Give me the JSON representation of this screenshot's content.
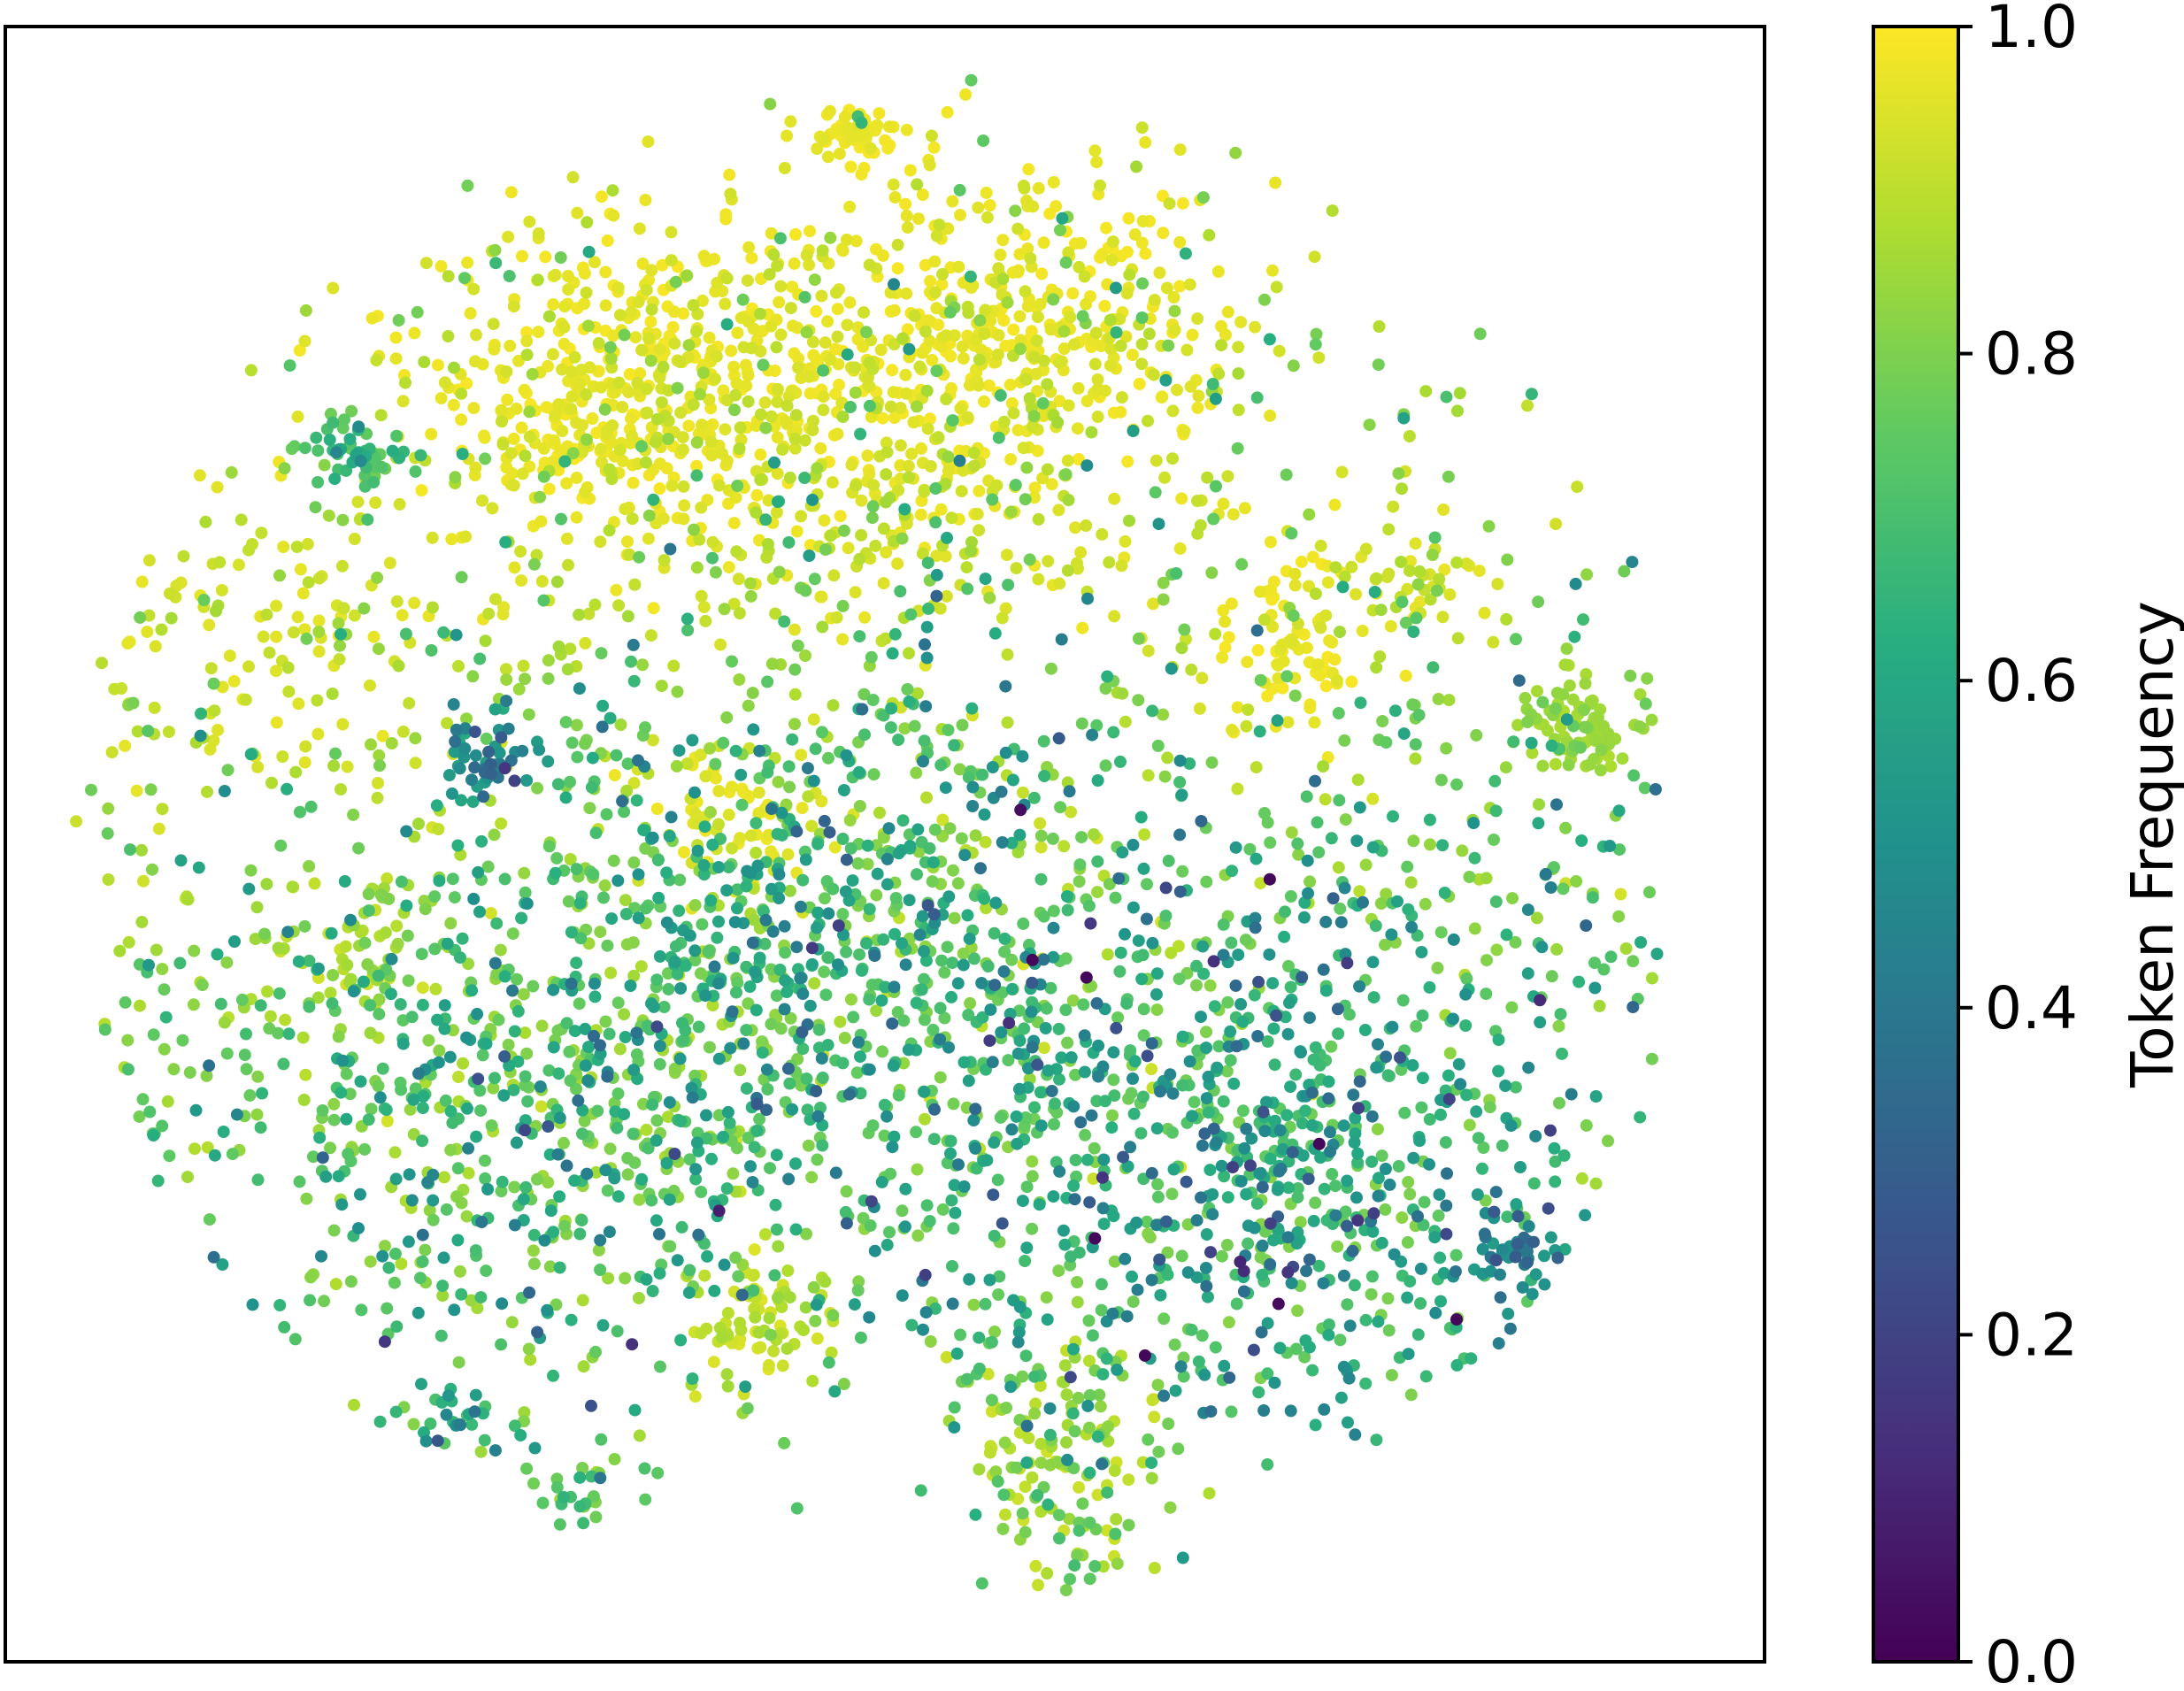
{
  "chart_data": {
    "type": "scatter",
    "title": "",
    "xlabel": "",
    "ylabel": "",
    "x_ticks_visible": false,
    "y_ticks_visible": false,
    "grid": false,
    "colormap": "viridis",
    "colorbar": {
      "label": "Token Frequency",
      "range": [
        0.0,
        1.0
      ],
      "ticks": [
        0.0,
        0.2,
        0.4,
        0.6,
        0.8,
        1.0
      ],
      "tick_labels": [
        "0.0",
        "0.2",
        "0.4",
        "0.6",
        "0.8",
        "1.0"
      ]
    },
    "xlim": [
      0,
      100
    ],
    "ylim": [
      0,
      100
    ],
    "clusters": [
      {
        "cx": 37,
        "cy": 79,
        "sx": 7,
        "sy": 5,
        "n": 420,
        "value": 0.99,
        "spread": 0.03
      },
      {
        "cx": 57,
        "cy": 81,
        "sx": 6,
        "sy": 5,
        "n": 420,
        "value": 0.99,
        "spread": 0.03
      },
      {
        "cx": 48,
        "cy": 73,
        "sx": 12,
        "sy": 6,
        "n": 380,
        "value": 0.98,
        "spread": 0.05
      },
      {
        "cx": 48.5,
        "cy": 93.5,
        "sx": 1.3,
        "sy": 0.9,
        "n": 60,
        "value": 0.99,
        "spread": 0.02
      },
      {
        "cx": 31,
        "cy": 75,
        "sx": 2.5,
        "sy": 2,
        "n": 60,
        "value": 0.99,
        "spread": 0.02
      },
      {
        "cx": 73,
        "cy": 62,
        "sx": 2,
        "sy": 3,
        "n": 80,
        "value": 0.99,
        "spread": 0.02
      },
      {
        "cx": 42,
        "cy": 52,
        "sx": 2.5,
        "sy": 2.5,
        "n": 70,
        "value": 0.98,
        "spread": 0.03
      },
      {
        "cx": 20,
        "cy": 74,
        "sx": 1.5,
        "sy": 1.2,
        "n": 55,
        "value": 0.78,
        "spread": 0.12
      },
      {
        "cx": 27.5,
        "cy": 55.5,
        "sx": 1.2,
        "sy": 1.2,
        "n": 50,
        "value": 0.62,
        "spread": 0.18
      },
      {
        "cx": 89.5,
        "cy": 57,
        "sx": 1.8,
        "sy": 1.5,
        "n": 80,
        "value": 0.88,
        "spread": 0.04
      },
      {
        "cx": 86,
        "cy": 25,
        "sx": 1.3,
        "sy": 1.0,
        "n": 45,
        "value": 0.55,
        "spread": 0.15
      },
      {
        "cx": 49,
        "cy": 43,
        "sx": 9,
        "sy": 10,
        "n": 700,
        "value": 0.84,
        "spread": 0.22
      },
      {
        "cx": 70,
        "cy": 31,
        "sx": 9,
        "sy": 9,
        "n": 850,
        "value": 0.82,
        "spread": 0.25
      },
      {
        "cx": 30,
        "cy": 35,
        "sx": 9,
        "sy": 10,
        "n": 750,
        "value": 0.88,
        "spread": 0.2
      },
      {
        "cx": 43,
        "cy": 21,
        "sx": 2.5,
        "sy": 2,
        "n": 80,
        "value": 0.95,
        "spread": 0.06
      },
      {
        "cx": 60,
        "cy": 12,
        "sx": 3,
        "sy": 4,
        "n": 150,
        "value": 0.93,
        "spread": 0.12
      },
      {
        "cx": 19,
        "cy": 43,
        "sx": 2.5,
        "sy": 2.5,
        "n": 60,
        "value": 0.93,
        "spread": 0.08
      },
      {
        "cx": 25,
        "cy": 15,
        "sx": 1.2,
        "sy": 1,
        "n": 25,
        "value": 0.75,
        "spread": 0.15
      },
      {
        "cx": 32,
        "cy": 10,
        "sx": 1.2,
        "sy": 1,
        "n": 20,
        "value": 0.85,
        "spread": 0.12
      },
      {
        "cx": 15,
        "cy": 62,
        "sx": 6,
        "sy": 6,
        "n": 150,
        "value": 0.97,
        "spread": 0.06
      },
      {
        "cx": 80,
        "cy": 66,
        "sx": 3,
        "sy": 1.5,
        "n": 50,
        "value": 0.97,
        "spread": 0.05
      },
      {
        "cx": 85,
        "cy": 45,
        "sx": 7,
        "sy": 12,
        "n": 180,
        "value": 0.88,
        "spread": 0.2
      },
      {
        "cx": 8,
        "cy": 40,
        "sx": 4,
        "sy": 9,
        "n": 90,
        "value": 0.9,
        "spread": 0.15
      },
      {
        "cx": 50,
        "cy": 62,
        "sx": 25,
        "sy": 15,
        "n": 650,
        "value": 0.94,
        "spread": 0.12
      }
    ]
  }
}
